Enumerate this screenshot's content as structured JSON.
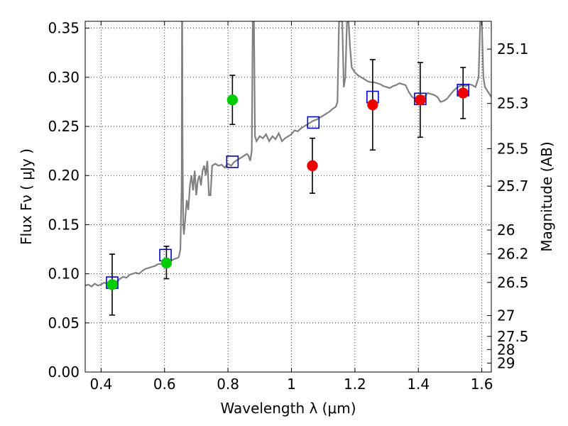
{
  "chart_data": {
    "type": "scatter",
    "title": "",
    "xlabel": "Wavelength  λ (μm)",
    "ylabel": "Flux  Fν  ( μJy )",
    "y2label": "Magnitude (AB)",
    "xlim": [
      0.35,
      1.63
    ],
    "ylim": [
      0.0,
      0.357
    ],
    "grid": true,
    "x_ticks": [
      0.4,
      0.6,
      0.8,
      1.0,
      1.2,
      1.4,
      1.6
    ],
    "x_tick_labels": [
      "0.4",
      "0.6",
      "0.8",
      "1",
      "1.2",
      "1.4",
      "1.6"
    ],
    "y_ticks": [
      0.0,
      0.05,
      0.1,
      0.15,
      0.2,
      0.25,
      0.3,
      0.35
    ],
    "y_tick_labels": [
      "0.00",
      "0.05",
      "0.10",
      "0.15",
      "0.20",
      "0.25",
      "0.30",
      "0.35"
    ],
    "mag_ticks": [
      {
        "label": "25.1",
        "flux": 0.3287
      },
      {
        "label": "25.3",
        "flux": 0.2734
      },
      {
        "label": "25.5",
        "flux": 0.2274
      },
      {
        "label": "25.7",
        "flux": 0.1892
      },
      {
        "label": "26",
        "flux": 0.1445
      },
      {
        "label": "26.2",
        "flux": 0.1202
      },
      {
        "label": "26.5",
        "flux": 0.0912
      },
      {
        "label": "27",
        "flux": 0.0575
      },
      {
        "label": "27.5",
        "flux": 0.0363
      },
      {
        "label": "28",
        "flux": 0.0229
      },
      {
        "label": "29",
        "flux": 0.0091
      }
    ],
    "colors": {
      "spectrum": "#808080",
      "model_box": "#0000cc",
      "obs_green": "#00cc00",
      "obs_red": "#ee0000",
      "errorbar": "#000000"
    },
    "observed": [
      {
        "x": 0.435,
        "y": 0.089,
        "yerr_lo": 0.058,
        "yerr_hi": 0.12,
        "color": "green"
      },
      {
        "x": 0.606,
        "y": 0.111,
        "yerr_lo": 0.095,
        "yerr_hi": 0.128,
        "color": "green"
      },
      {
        "x": 0.814,
        "y": 0.277,
        "yerr_lo": 0.252,
        "yerr_hi": 0.302,
        "color": "green"
      },
      {
        "x": 1.066,
        "y": 0.21,
        "yerr_lo": 0.182,
        "yerr_hi": 0.238,
        "color": "red"
      },
      {
        "x": 1.256,
        "y": 0.272,
        "yerr_lo": 0.226,
        "yerr_hi": 0.318,
        "color": "red"
      },
      {
        "x": 1.406,
        "y": 0.277,
        "yerr_lo": 0.239,
        "yerr_hi": 0.315,
        "color": "red"
      },
      {
        "x": 1.541,
        "y": 0.284,
        "yerr_lo": 0.258,
        "yerr_hi": 0.31,
        "color": "red"
      }
    ],
    "model_points": [
      {
        "x": 0.435,
        "y": 0.091
      },
      {
        "x": 0.603,
        "y": 0.119
      },
      {
        "x": 0.814,
        "y": 0.214
      },
      {
        "x": 1.069,
        "y": 0.254
      },
      {
        "x": 1.256,
        "y": 0.28
      },
      {
        "x": 1.406,
        "y": 0.278
      },
      {
        "x": 1.541,
        "y": 0.287
      }
    ],
    "spectrum": [
      [
        0.35,
        0.088
      ],
      [
        0.36,
        0.089
      ],
      [
        0.37,
        0.087
      ],
      [
        0.38,
        0.09
      ],
      [
        0.39,
        0.088
      ],
      [
        0.4,
        0.089
      ],
      [
        0.41,
        0.091
      ],
      [
        0.42,
        0.09
      ],
      [
        0.43,
        0.092
      ],
      [
        0.44,
        0.093
      ],
      [
        0.45,
        0.092
      ],
      [
        0.46,
        0.095
      ],
      [
        0.47,
        0.097
      ],
      [
        0.48,
        0.096
      ],
      [
        0.49,
        0.099
      ],
      [
        0.5,
        0.1
      ],
      [
        0.51,
        0.101
      ],
      [
        0.52,
        0.1
      ],
      [
        0.53,
        0.103
      ],
      [
        0.54,
        0.105
      ],
      [
        0.55,
        0.106
      ],
      [
        0.56,
        0.107
      ],
      [
        0.57,
        0.108
      ],
      [
        0.58,
        0.11
      ],
      [
        0.59,
        0.11
      ],
      [
        0.6,
        0.111
      ],
      [
        0.61,
        0.112
      ],
      [
        0.62,
        0.113
      ],
      [
        0.63,
        0.115
      ],
      [
        0.64,
        0.116
      ],
      [
        0.645,
        0.117
      ],
      [
        0.65,
        0.125
      ],
      [
        0.652,
        0.16
      ],
      [
        0.654,
        0.19
      ],
      [
        0.655,
        0.357
      ],
      [
        0.656,
        0.357
      ],
      [
        0.657,
        0.22
      ],
      [
        0.659,
        0.15
      ],
      [
        0.661,
        0.14
      ],
      [
        0.665,
        0.155
      ],
      [
        0.67,
        0.175
      ],
      [
        0.675,
        0.165
      ],
      [
        0.68,
        0.19
      ],
      [
        0.685,
        0.2
      ],
      [
        0.69,
        0.185
      ],
      [
        0.695,
        0.205
      ],
      [
        0.7,
        0.18
      ],
      [
        0.705,
        0.195
      ],
      [
        0.71,
        0.2
      ],
      [
        0.715,
        0.19
      ],
      [
        0.72,
        0.205
      ],
      [
        0.725,
        0.21
      ],
      [
        0.73,
        0.2
      ],
      [
        0.735,
        0.215
      ],
      [
        0.74,
        0.18
      ],
      [
        0.745,
        0.18
      ],
      [
        0.75,
        0.21
      ],
      [
        0.76,
        0.212
      ],
      [
        0.77,
        0.21
      ],
      [
        0.78,
        0.211
      ],
      [
        0.79,
        0.208
      ],
      [
        0.8,
        0.212
      ],
      [
        0.81,
        0.21
      ],
      [
        0.82,
        0.214
      ],
      [
        0.83,
        0.216
      ],
      [
        0.84,
        0.218
      ],
      [
        0.85,
        0.22
      ],
      [
        0.86,
        0.222
      ],
      [
        0.865,
        0.22
      ],
      [
        0.87,
        0.215
      ],
      [
        0.875,
        0.225
      ],
      [
        0.878,
        0.357
      ],
      [
        0.882,
        0.357
      ],
      [
        0.885,
        0.24
      ],
      [
        0.89,
        0.235
      ],
      [
        0.9,
        0.24
      ],
      [
        0.91,
        0.238
      ],
      [
        0.92,
        0.242
      ],
      [
        0.93,
        0.235
      ],
      [
        0.94,
        0.24
      ],
      [
        0.95,
        0.237
      ],
      [
        0.96,
        0.243
      ],
      [
        0.97,
        0.235
      ],
      [
        0.98,
        0.238
      ],
      [
        0.99,
        0.24
      ],
      [
        1.0,
        0.242
      ],
      [
        1.01,
        0.246
      ],
      [
        1.02,
        0.245
      ],
      [
        1.03,
        0.248
      ],
      [
        1.04,
        0.25
      ],
      [
        1.05,
        0.252
      ],
      [
        1.06,
        0.254
      ],
      [
        1.07,
        0.256
      ],
      [
        1.08,
        0.257
      ],
      [
        1.09,
        0.259
      ],
      [
        1.1,
        0.261
      ],
      [
        1.11,
        0.263
      ],
      [
        1.12,
        0.265
      ],
      [
        1.13,
        0.268
      ],
      [
        1.14,
        0.27
      ],
      [
        1.145,
        0.275
      ],
      [
        1.15,
        0.357
      ],
      [
        1.16,
        0.357
      ],
      [
        1.165,
        0.29
      ],
      [
        1.17,
        0.3
      ],
      [
        1.175,
        0.357
      ],
      [
        1.18,
        0.357
      ],
      [
        1.185,
        0.33
      ],
      [
        1.19,
        0.31
      ],
      [
        1.2,
        0.305
      ],
      [
        1.21,
        0.302
      ],
      [
        1.22,
        0.3
      ],
      [
        1.23,
        0.298
      ],
      [
        1.24,
        0.296
      ],
      [
        1.25,
        0.295
      ],
      [
        1.26,
        0.295
      ],
      [
        1.27,
        0.294
      ],
      [
        1.28,
        0.293
      ],
      [
        1.29,
        0.291
      ],
      [
        1.3,
        0.29
      ],
      [
        1.31,
        0.289
      ],
      [
        1.32,
        0.291
      ],
      [
        1.33,
        0.292
      ],
      [
        1.34,
        0.294
      ],
      [
        1.35,
        0.293
      ],
      [
        1.36,
        0.292
      ],
      [
        1.37,
        0.285
      ],
      [
        1.38,
        0.28
      ],
      [
        1.39,
        0.278
      ],
      [
        1.4,
        0.279
      ],
      [
        1.41,
        0.28
      ],
      [
        1.42,
        0.281
      ],
      [
        1.43,
        0.284
      ],
      [
        1.44,
        0.283
      ],
      [
        1.45,
        0.282
      ],
      [
        1.46,
        0.28
      ],
      [
        1.47,
        0.275
      ],
      [
        1.48,
        0.276
      ],
      [
        1.49,
        0.278
      ],
      [
        1.5,
        0.282
      ],
      [
        1.51,
        0.286
      ],
      [
        1.52,
        0.289
      ],
      [
        1.53,
        0.291
      ],
      [
        1.54,
        0.292
      ],
      [
        1.55,
        0.291
      ],
      [
        1.56,
        0.293
      ],
      [
        1.57,
        0.292
      ],
      [
        1.58,
        0.29
      ],
      [
        1.59,
        0.3
      ],
      [
        1.595,
        0.357
      ],
      [
        1.6,
        0.357
      ],
      [
        1.605,
        0.3
      ],
      [
        1.61,
        0.29
      ],
      [
        1.62,
        0.285
      ],
      [
        1.63,
        0.28
      ]
    ]
  }
}
